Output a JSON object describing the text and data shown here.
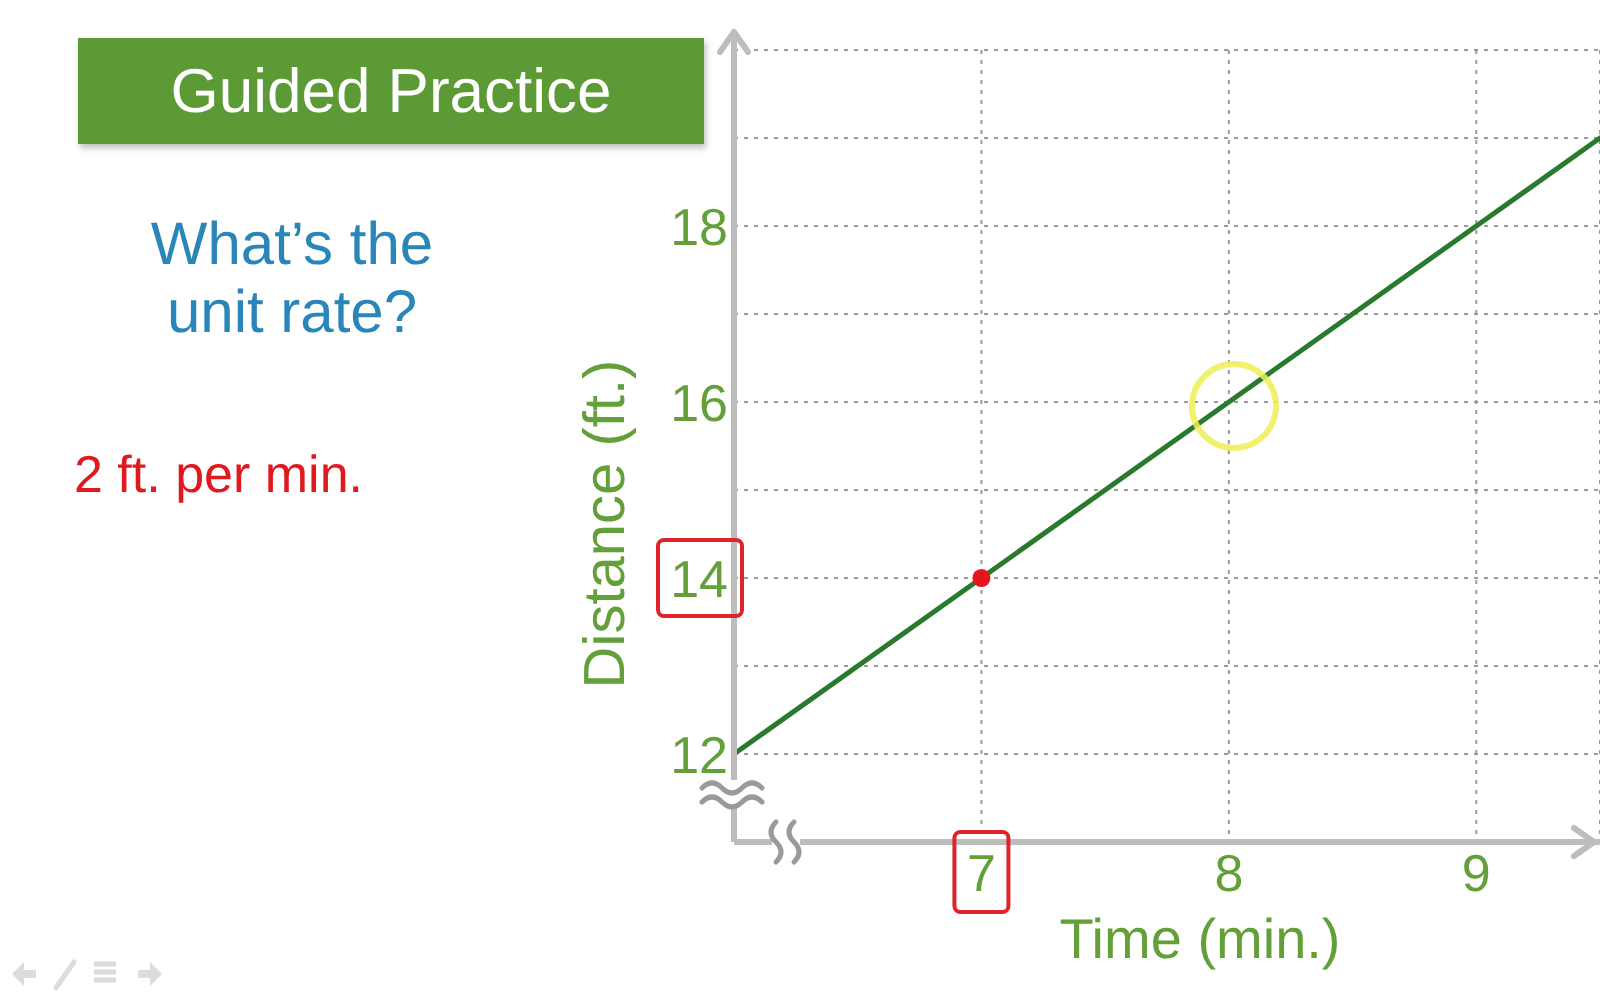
{
  "chart_data": {
    "type": "line",
    "title": "Guided Practice",
    "xlabel": "Time (min.)",
    "ylabel": "Distance (ft.)",
    "annotations": [
      "What’s the unit rate?",
      "2 ft. per min."
    ],
    "xlim": [
      6,
      9.5
    ],
    "xticks": [
      7,
      8,
      9
    ],
    "ylim": [
      11,
      20
    ],
    "yticks": [
      12,
      {
        "value": 13,
        "label": null
      },
      14,
      {
        "value": 15,
        "label": null
      },
      16,
      {
        "value": 17,
        "label": null
      },
      18,
      {
        "value": 19,
        "label": null
      },
      {
        "value": 20,
        "label": null
      }
    ],
    "grid": true,
    "series": [
      {
        "type": "line",
        "color": "#2a7a2e",
        "x": [
          6,
          7,
          8,
          9,
          9.5
        ],
        "values": [
          12,
          14,
          16,
          18,
          19
        ]
      },
      {
        "type": "scatter",
        "color": "#e8141b",
        "x": [
          7
        ],
        "values": [
          14
        ],
        "marker": "circle"
      }
    ]
  }
}
